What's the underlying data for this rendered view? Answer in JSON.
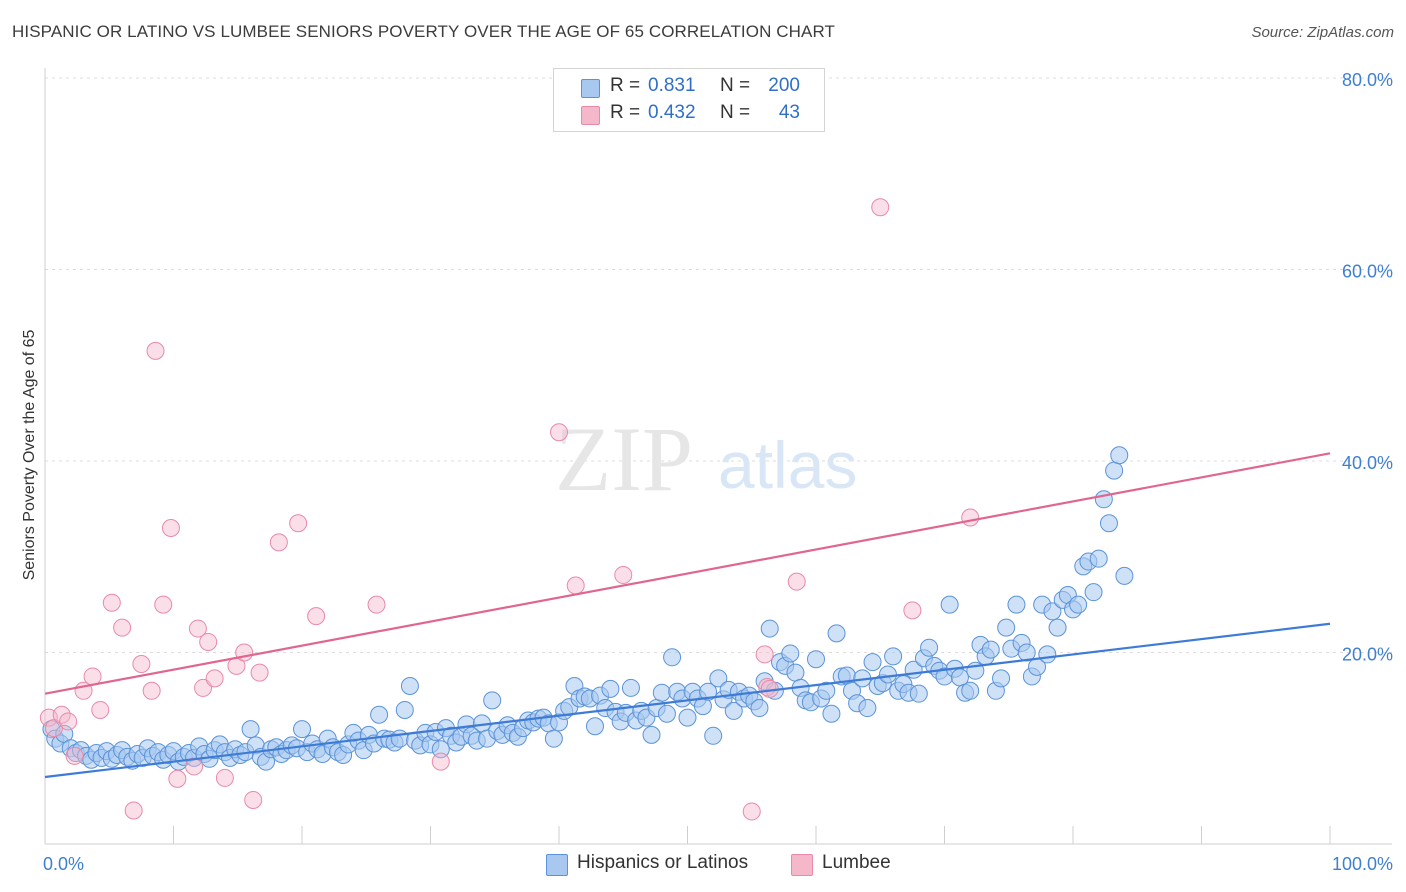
{
  "title": "HISPANIC OR LATINO VS LUMBEE SENIORS POVERTY OVER THE AGE OF 65 CORRELATION CHART",
  "source": "Source: ZipAtlas.com",
  "watermark": {
    "zip": "ZIP",
    "atlas": "atlas"
  },
  "stats": [
    {
      "r_label": "R =",
      "r_value": "0.831",
      "n_label": "N =",
      "n_value": "200",
      "color": "#a8c8f0"
    },
    {
      "r_label": "R =",
      "r_value": "0.432",
      "n_label": "N =",
      "n_value": "43",
      "color": "#f5b8cb"
    }
  ],
  "legend": [
    {
      "label": "Hispanics or Latinos",
      "color": "#a8c8f0"
    },
    {
      "label": "Lumbee",
      "color": "#f5b8cb"
    }
  ],
  "chart_data": {
    "type": "scatter",
    "title": "HISPANIC OR LATINO VS LUMBEE SENIORS POVERTY OVER THE AGE OF 65 CORRELATION CHART",
    "xlabel": "",
    "ylabel": "Seniors Poverty Over the Age of 65",
    "xlim": [
      0,
      100
    ],
    "ylim": [
      0,
      80
    ],
    "x_tick_labels": [
      "0.0%",
      "100.0%"
    ],
    "y_ticks": [
      20,
      40,
      60,
      80
    ],
    "y_tick_labels": [
      "20.0%",
      "40.0%",
      "60.0%",
      "80.0%"
    ],
    "grid": true,
    "legend_position": "bottom",
    "colors": {
      "blue_fill": "#a8c8f0",
      "blue_stroke": "#5b93d8",
      "blue_line": "#3d7bd6",
      "pink_fill": "#f5b8cb",
      "pink_stroke": "#e88aa8",
      "pink_line": "#e06690",
      "tick_label": "#3f7fd0"
    },
    "series": [
      {
        "name": "Hispanics or Latinos",
        "trend": {
          "x": [
            0,
            100
          ],
          "y": [
            7.0,
            23.0
          ]
        },
        "points": [
          [
            0.5,
            12.0
          ],
          [
            0.8,
            11.0
          ],
          [
            1.2,
            10.5
          ],
          [
            1.5,
            11.5
          ],
          [
            2.0,
            10.0
          ],
          [
            2.4,
            9.5
          ],
          [
            2.8,
            9.8
          ],
          [
            3.2,
            9.2
          ],
          [
            3.6,
            8.8
          ],
          [
            4.0,
            9.5
          ],
          [
            4.4,
            9.0
          ],
          [
            4.8,
            9.7
          ],
          [
            5.2,
            8.9
          ],
          [
            5.6,
            9.3
          ],
          [
            6.0,
            9.8
          ],
          [
            6.4,
            9.1
          ],
          [
            6.8,
            8.7
          ],
          [
            7.2,
            9.4
          ],
          [
            7.6,
            9.0
          ],
          [
            8.0,
            10.0
          ],
          [
            8.4,
            9.2
          ],
          [
            8.8,
            9.6
          ],
          [
            9.2,
            8.8
          ],
          [
            9.6,
            9.3
          ],
          [
            10.0,
            9.7
          ],
          [
            10.4,
            8.6
          ],
          [
            10.8,
            9.1
          ],
          [
            11.2,
            9.5
          ],
          [
            11.6,
            9.0
          ],
          [
            12.0,
            10.2
          ],
          [
            12.4,
            9.4
          ],
          [
            12.8,
            8.9
          ],
          [
            13.2,
            9.8
          ],
          [
            13.6,
            10.4
          ],
          [
            14.0,
            9.6
          ],
          [
            14.4,
            9.0
          ],
          [
            14.8,
            9.9
          ],
          [
            15.2,
            9.3
          ],
          [
            15.6,
            9.6
          ],
          [
            16.0,
            12.0
          ],
          [
            16.4,
            10.3
          ],
          [
            16.8,
            9.1
          ],
          [
            17.2,
            8.6
          ],
          [
            17.6,
            9.9
          ],
          [
            18.0,
            10.1
          ],
          [
            18.4,
            9.4
          ],
          [
            18.8,
            9.8
          ],
          [
            19.2,
            10.3
          ],
          [
            19.6,
            10.0
          ],
          [
            20.0,
            12.0
          ],
          [
            20.4,
            9.6
          ],
          [
            20.8,
            10.5
          ],
          [
            21.2,
            9.9
          ],
          [
            21.6,
            9.4
          ],
          [
            22.0,
            11.0
          ],
          [
            22.4,
            10.1
          ],
          [
            22.8,
            9.6
          ],
          [
            23.2,
            9.3
          ],
          [
            23.6,
            10.4
          ],
          [
            24.0,
            11.6
          ],
          [
            24.4,
            10.8
          ],
          [
            24.8,
            9.8
          ],
          [
            25.2,
            11.4
          ],
          [
            25.6,
            10.5
          ],
          [
            26.0,
            13.5
          ],
          [
            26.4,
            11.0
          ],
          [
            26.8,
            10.9
          ],
          [
            27.2,
            10.6
          ],
          [
            27.6,
            11.0
          ],
          [
            28.0,
            14.0
          ],
          [
            28.4,
            16.5
          ],
          [
            28.8,
            10.8
          ],
          [
            29.2,
            10.3
          ],
          [
            29.6,
            11.6
          ],
          [
            30.0,
            10.4
          ],
          [
            30.4,
            11.7
          ],
          [
            30.8,
            9.9
          ],
          [
            31.2,
            12.1
          ],
          [
            31.6,
            11.3
          ],
          [
            32.0,
            10.6
          ],
          [
            32.4,
            11.2
          ],
          [
            32.8,
            12.5
          ],
          [
            33.2,
            11.3
          ],
          [
            33.6,
            10.8
          ],
          [
            34.0,
            12.6
          ],
          [
            34.4,
            11.0
          ],
          [
            34.8,
            15.0
          ],
          [
            35.2,
            11.8
          ],
          [
            35.6,
            11.4
          ],
          [
            36.0,
            12.4
          ],
          [
            36.4,
            11.6
          ],
          [
            36.8,
            11.2
          ],
          [
            37.2,
            12.1
          ],
          [
            37.6,
            12.9
          ],
          [
            38.0,
            12.7
          ],
          [
            38.4,
            13.1
          ],
          [
            38.8,
            13.2
          ],
          [
            39.2,
            12.6
          ],
          [
            39.6,
            11.0
          ],
          [
            40.0,
            12.7
          ],
          [
            40.4,
            13.9
          ],
          [
            40.8,
            14.3
          ],
          [
            41.2,
            16.5
          ],
          [
            41.6,
            15.2
          ],
          [
            42.0,
            15.4
          ],
          [
            42.4,
            15.2
          ],
          [
            42.8,
            12.3
          ],
          [
            43.2,
            15.5
          ],
          [
            43.6,
            14.2
          ],
          [
            44.0,
            16.2
          ],
          [
            44.4,
            13.8
          ],
          [
            44.8,
            12.8
          ],
          [
            45.2,
            13.7
          ],
          [
            45.6,
            16.3
          ],
          [
            46.0,
            12.9
          ],
          [
            46.4,
            13.9
          ],
          [
            46.8,
            13.2
          ],
          [
            47.2,
            11.4
          ],
          [
            47.6,
            14.2
          ],
          [
            48.0,
            15.8
          ],
          [
            48.4,
            13.6
          ],
          [
            48.8,
            19.5
          ],
          [
            49.2,
            15.9
          ],
          [
            49.6,
            15.2
          ],
          [
            50.0,
            13.2
          ],
          [
            50.4,
            15.9
          ],
          [
            50.8,
            15.2
          ],
          [
            51.2,
            14.4
          ],
          [
            51.6,
            15.9
          ],
          [
            52.0,
            11.3
          ],
          [
            52.4,
            17.3
          ],
          [
            52.8,
            15.1
          ],
          [
            53.2,
            16.1
          ],
          [
            53.6,
            13.9
          ],
          [
            54.0,
            15.9
          ],
          [
            54.4,
            15.2
          ],
          [
            54.8,
            15.5
          ],
          [
            55.2,
            14.9
          ],
          [
            55.6,
            14.2
          ],
          [
            56.0,
            17.0
          ],
          [
            56.4,
            22.5
          ],
          [
            56.8,
            16.0
          ],
          [
            57.2,
            19.0
          ],
          [
            57.6,
            18.6
          ],
          [
            58.0,
            19.9
          ],
          [
            58.4,
            17.9
          ],
          [
            58.8,
            16.3
          ],
          [
            59.2,
            15.0
          ],
          [
            59.6,
            14.8
          ],
          [
            60.0,
            19.3
          ],
          [
            60.4,
            15.2
          ],
          [
            60.8,
            16.0
          ],
          [
            61.2,
            13.6
          ],
          [
            61.6,
            22.0
          ],
          [
            62.0,
            17.5
          ],
          [
            62.4,
            17.6
          ],
          [
            62.8,
            16.0
          ],
          [
            63.2,
            14.7
          ],
          [
            63.6,
            17.3
          ],
          [
            64.0,
            14.2
          ],
          [
            64.4,
            19.0
          ],
          [
            64.8,
            16.5
          ],
          [
            65.2,
            16.8
          ],
          [
            65.6,
            17.7
          ],
          [
            66.0,
            19.6
          ],
          [
            66.4,
            16.0
          ],
          [
            66.8,
            16.7
          ],
          [
            67.2,
            15.8
          ],
          [
            67.6,
            18.2
          ],
          [
            68.0,
            15.7
          ],
          [
            68.4,
            19.4
          ],
          [
            68.8,
            20.5
          ],
          [
            69.2,
            18.6
          ],
          [
            69.6,
            18.1
          ],
          [
            70.0,
            17.5
          ],
          [
            70.4,
            25.0
          ],
          [
            70.8,
            18.3
          ],
          [
            71.2,
            17.4
          ],
          [
            71.6,
            15.8
          ],
          [
            72.0,
            16.0
          ],
          [
            72.4,
            18.1
          ],
          [
            72.8,
            20.8
          ],
          [
            73.2,
            19.6
          ],
          [
            73.6,
            20.3
          ],
          [
            74.0,
            16.0
          ],
          [
            74.4,
            17.3
          ],
          [
            74.8,
            22.6
          ],
          [
            75.2,
            20.4
          ],
          [
            75.6,
            25.0
          ],
          [
            76.0,
            21.0
          ],
          [
            76.4,
            20.0
          ],
          [
            76.8,
            17.5
          ],
          [
            77.2,
            18.5
          ],
          [
            77.6,
            25.0
          ],
          [
            78.0,
            19.8
          ],
          [
            78.4,
            24.3
          ],
          [
            78.8,
            22.6
          ],
          [
            79.2,
            25.5
          ],
          [
            79.6,
            26.0
          ],
          [
            80.0,
            24.5
          ],
          [
            80.4,
            25.0
          ],
          [
            80.8,
            29.0
          ],
          [
            81.2,
            29.5
          ],
          [
            81.6,
            26.3
          ],
          [
            82.0,
            29.8
          ],
          [
            82.4,
            36.0
          ],
          [
            82.8,
            33.5
          ],
          [
            83.2,
            39.0
          ],
          [
            83.6,
            40.6
          ],
          [
            84.0,
            28.0
          ]
        ]
      },
      {
        "name": "Lumbee",
        "trend": {
          "x": [
            0,
            100
          ],
          "y": [
            15.7,
            40.8
          ]
        },
        "points": [
          [
            0.3,
            13.2
          ],
          [
            0.7,
            12.1
          ],
          [
            1.3,
            13.5
          ],
          [
            1.8,
            12.8
          ],
          [
            2.3,
            9.2
          ],
          [
            3.0,
            16.0
          ],
          [
            3.7,
            17.5
          ],
          [
            4.3,
            14.0
          ],
          [
            5.2,
            25.2
          ],
          [
            6.0,
            22.6
          ],
          [
            6.9,
            3.5
          ],
          [
            7.5,
            18.8
          ],
          [
            8.3,
            16.0
          ],
          [
            8.6,
            51.5
          ],
          [
            9.2,
            25.0
          ],
          [
            9.8,
            33.0
          ],
          [
            10.3,
            6.8
          ],
          [
            11.6,
            8.1
          ],
          [
            11.9,
            22.5
          ],
          [
            12.3,
            16.3
          ],
          [
            12.7,
            21.1
          ],
          [
            13.2,
            17.3
          ],
          [
            14.0,
            6.9
          ],
          [
            14.9,
            18.6
          ],
          [
            15.5,
            20.0
          ],
          [
            16.2,
            4.6
          ],
          [
            16.7,
            17.9
          ],
          [
            18.2,
            31.5
          ],
          [
            19.7,
            33.5
          ],
          [
            21.1,
            23.8
          ],
          [
            25.8,
            25.0
          ],
          [
            40.0,
            43.0
          ],
          [
            41.3,
            27.0
          ],
          [
            45.0,
            28.1
          ],
          [
            55.0,
            3.4
          ],
          [
            56.0,
            19.8
          ],
          [
            56.2,
            16.4
          ],
          [
            58.5,
            27.4
          ],
          [
            65.0,
            66.5
          ],
          [
            67.5,
            24.4
          ],
          [
            72.0,
            34.1
          ],
          [
            56.4,
            16.2
          ],
          [
            30.8,
            8.6
          ]
        ]
      }
    ]
  }
}
